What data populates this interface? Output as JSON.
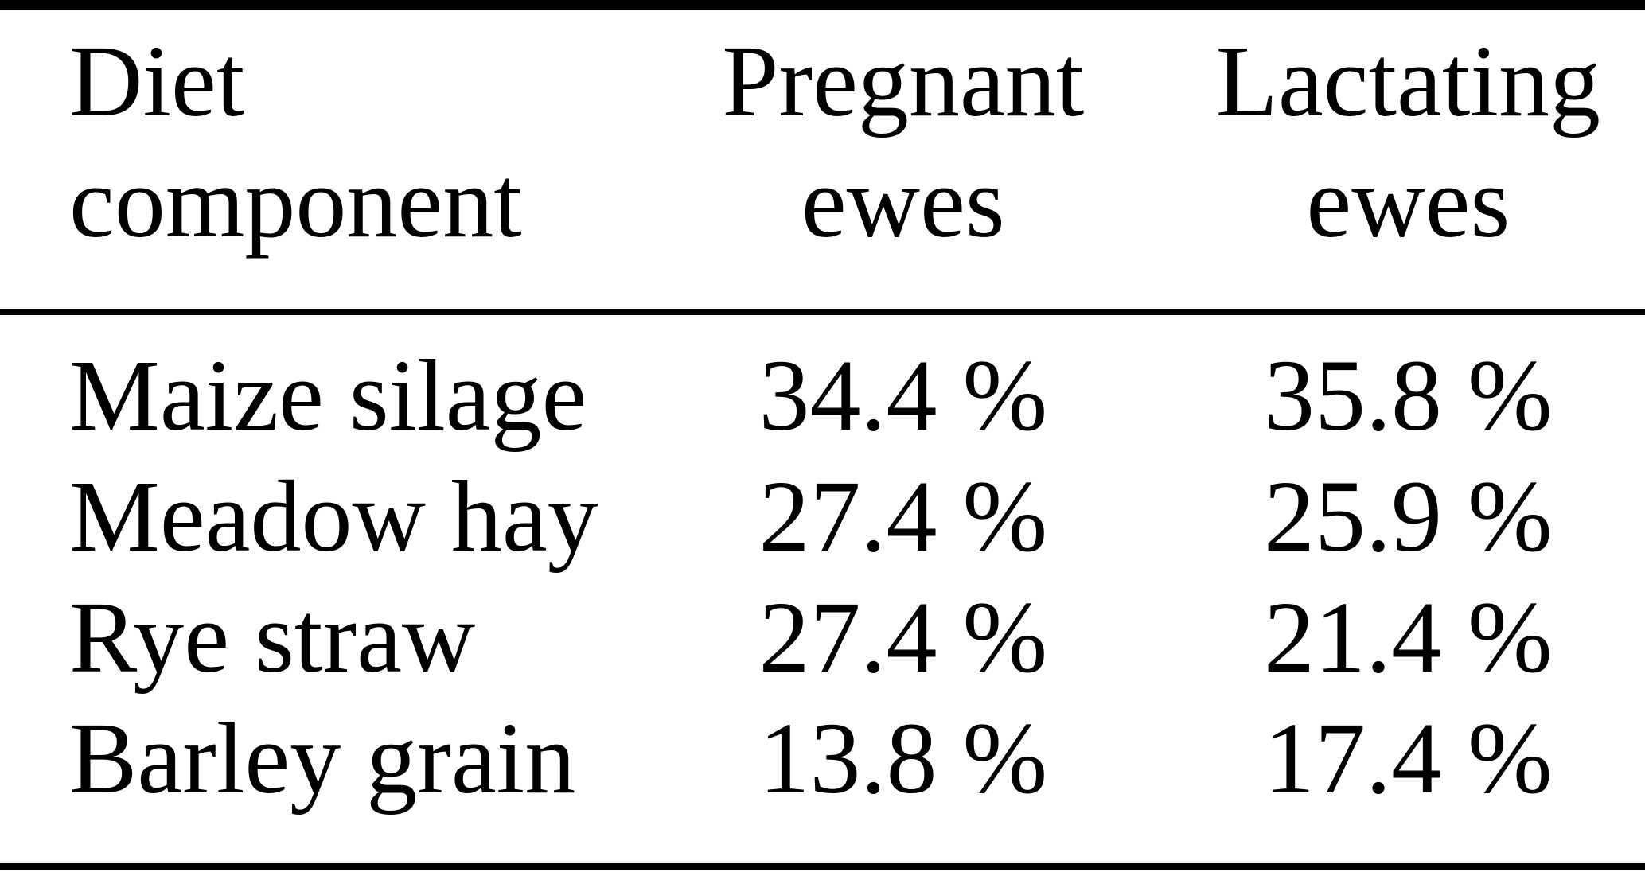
{
  "table": {
    "header": {
      "col1": {
        "line1": "Diet",
        "line2": "component"
      },
      "col2": {
        "line1": "Pregnant",
        "line2": "ewes"
      },
      "col3": {
        "line1": "Lactating",
        "line2": "ewes"
      }
    },
    "rows": [
      {
        "component": "Maize silage",
        "pregnant": "34.4 %",
        "lactating": "35.8 %"
      },
      {
        "component": "Meadow hay",
        "pregnant": "27.4 %",
        "lactating": "25.9 %"
      },
      {
        "component": "Rye straw",
        "pregnant": "27.4 %",
        "lactating": "21.4 %"
      },
      {
        "component": "Barley grain",
        "pregnant": "13.8 %",
        "lactating": "17.4 %"
      }
    ]
  },
  "chart_data": {
    "type": "table",
    "title": "",
    "columns": [
      "Diet component",
      "Pregnant ewes",
      "Lactating ewes"
    ],
    "categories": [
      "Maize silage",
      "Meadow hay",
      "Rye straw",
      "Barley grain"
    ],
    "series": [
      {
        "name": "Pregnant ewes",
        "values": [
          34.4,
          27.4,
          27.4,
          13.8
        ],
        "unit": "%"
      },
      {
        "name": "Lactating ewes",
        "values": [
          35.8,
          25.9,
          21.4,
          17.4
        ],
        "unit": "%"
      }
    ]
  },
  "colors": {
    "text": "#000000",
    "background": "#ffffff",
    "rule": "#000000"
  }
}
